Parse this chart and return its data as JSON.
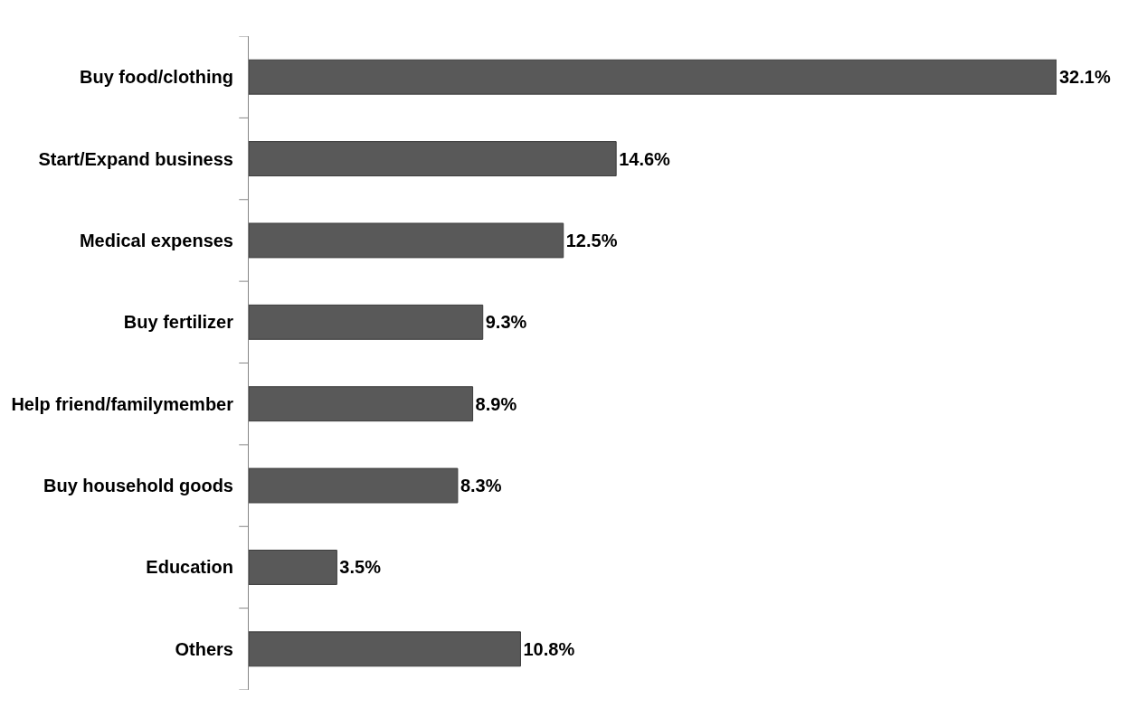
{
  "chart_data": {
    "type": "bar",
    "orientation": "horizontal",
    "categories": [
      "Buy food/clothing",
      "Start/Expand business",
      "Medical expenses",
      "Buy fertilizer",
      "Help friend/familymember",
      "Buy household goods",
      "Education",
      "Others"
    ],
    "values": [
      32.1,
      14.6,
      12.5,
      9.3,
      8.9,
      8.3,
      3.5,
      10.8
    ],
    "value_labels": [
      "32.1%",
      "14.6%",
      "12.5%",
      "9.3%",
      "8.9%",
      "8.3%",
      "3.5%",
      "10.8%"
    ],
    "color": "#595959",
    "legend": false
  }
}
